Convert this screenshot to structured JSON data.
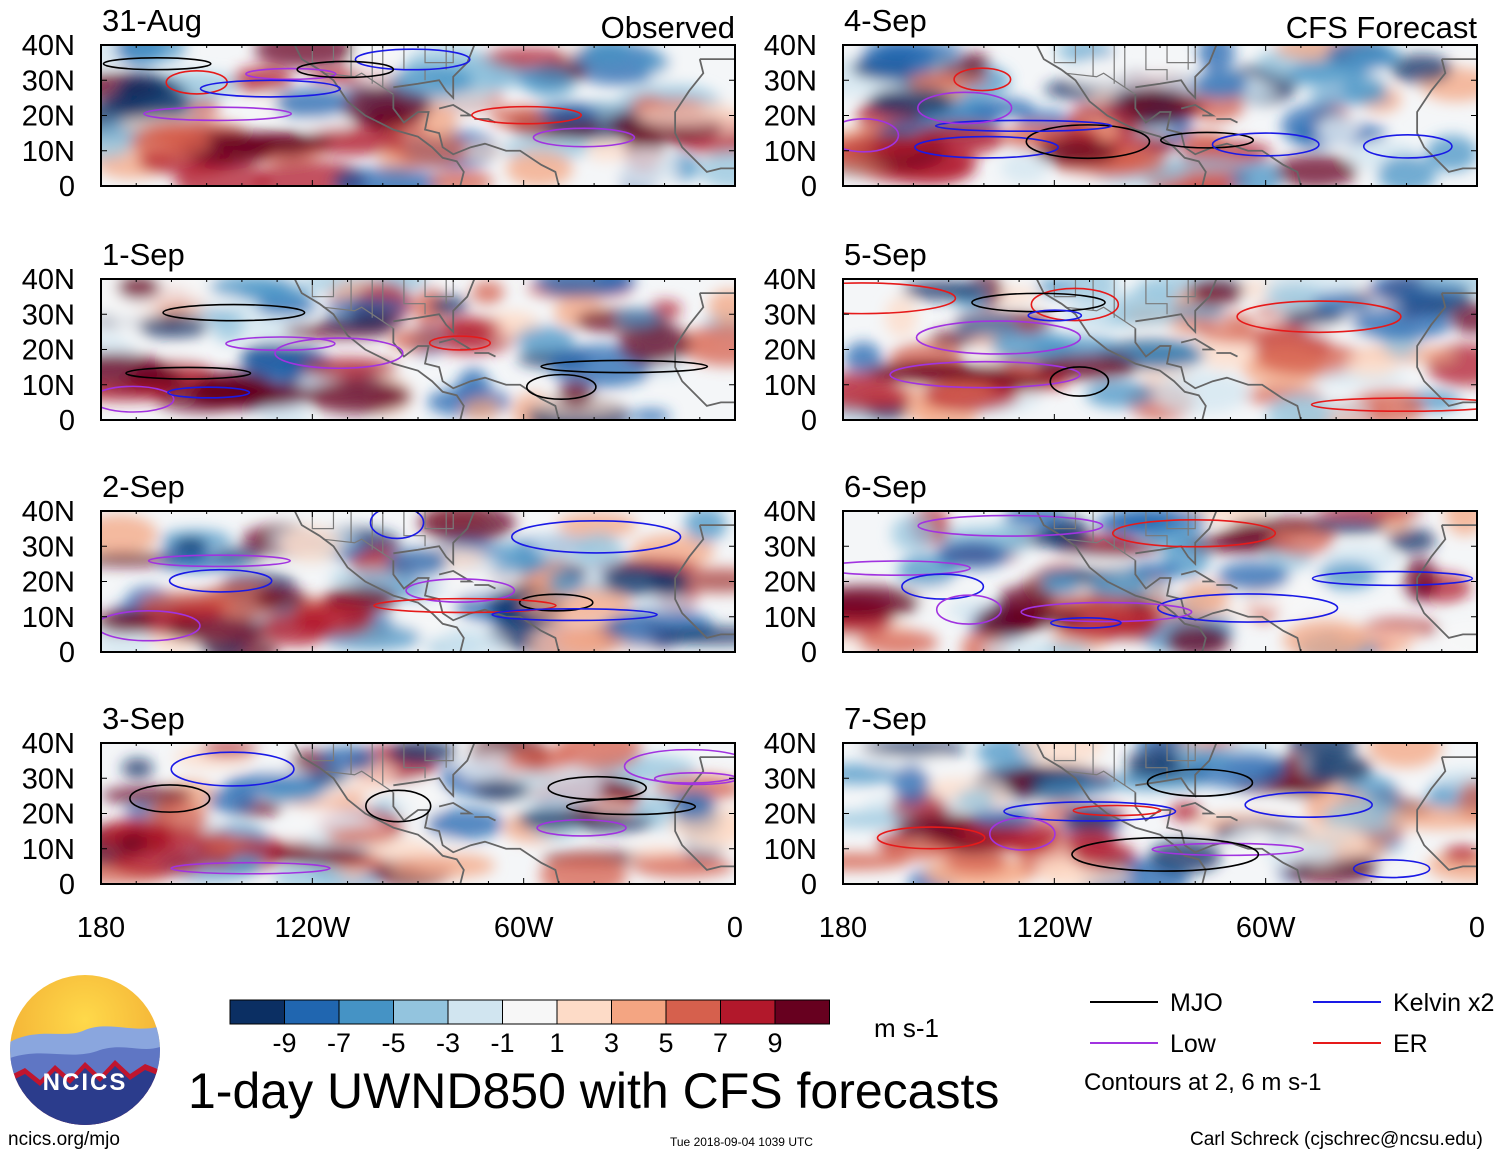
{
  "chart_data": {
    "type": "heatmap",
    "title": "1-day UWND850 with CFS forecasts",
    "variable": "UWND850",
    "units": "m s-1",
    "x_axis": {
      "range": [
        -180,
        0
      ],
      "ticks": [
        -180,
        -120,
        -60,
        0
      ],
      "tick_labels": [
        "180",
        "120W",
        "60W",
        "0"
      ]
    },
    "y_axis": {
      "range": [
        0,
        40
      ],
      "ticks": [
        0,
        10,
        20,
        30,
        40
      ],
      "tick_labels": [
        "0",
        "10N",
        "20N",
        "30N",
        "40N"
      ]
    },
    "column_labels": {
      "observed": "Observed",
      "forecast": "CFS Forecast"
    },
    "panels": [
      {
        "date": "31-Aug",
        "source": "Observed",
        "column": 0,
        "row": 0
      },
      {
        "date": "1-Sep",
        "source": "Observed",
        "column": 0,
        "row": 1
      },
      {
        "date": "2-Sep",
        "source": "Observed",
        "column": 0,
        "row": 2
      },
      {
        "date": "3-Sep",
        "source": "Observed",
        "column": 0,
        "row": 3
      },
      {
        "date": "4-Sep",
        "source": "CFS Forecast",
        "column": 1,
        "row": 0
      },
      {
        "date": "5-Sep",
        "source": "CFS Forecast",
        "column": 1,
        "row": 1
      },
      {
        "date": "6-Sep",
        "source": "CFS Forecast",
        "column": 1,
        "row": 2
      },
      {
        "date": "7-Sep",
        "source": "CFS Forecast",
        "column": 1,
        "row": 3
      }
    ],
    "colorbar": {
      "colors": [
        "#0b2f63",
        "#2066b0",
        "#4593c5",
        "#93c4de",
        "#d1e5f0",
        "#f7f7f7",
        "#fddbc7",
        "#f4a582",
        "#d6604d",
        "#b2182b",
        "#67001f"
      ],
      "tick_labels": [
        "-9",
        "-7",
        "-5",
        "-3",
        "-1",
        "1",
        "3",
        "5",
        "7",
        "9"
      ],
      "units": "m s-1"
    },
    "legend": [
      {
        "label": "MJO",
        "color": "#000000"
      },
      {
        "label": "Low",
        "color": "#a133e0"
      },
      {
        "label": "Kelvin x2",
        "color": "#1a1ae6"
      },
      {
        "label": "ER",
        "color": "#e61a1a"
      }
    ],
    "contour_note": "Contours at 2, 6 m s-1"
  },
  "branding": {
    "logo_text": "NCICS"
  },
  "footer": {
    "website": "ncics.org/mjo",
    "timestamp": "Tue 2018-09-04 1039 UTC",
    "author": "Carl Schreck (cjschrec@ncsu.edu)"
  }
}
